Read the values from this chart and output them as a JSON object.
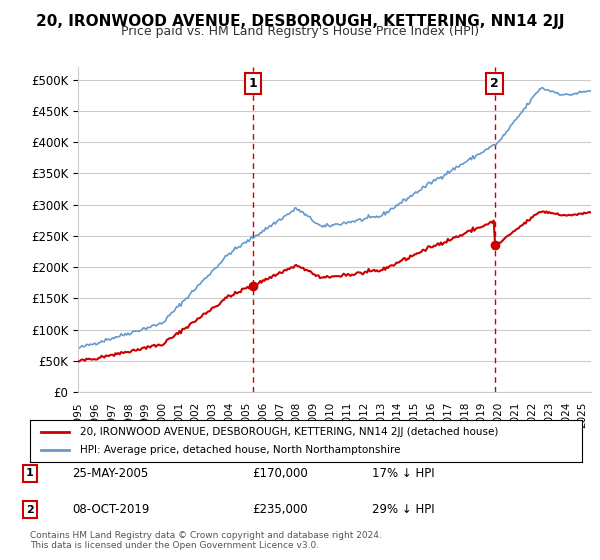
{
  "title": "20, IRONWOOD AVENUE, DESBOROUGH, KETTERING, NN14 2JJ",
  "subtitle": "Price paid vs. HM Land Registry's House Price Index (HPI)",
  "ylabel_ticks": [
    "£0",
    "£50K",
    "£100K",
    "£150K",
    "£200K",
    "£250K",
    "£300K",
    "£350K",
    "£400K",
    "£450K",
    "£500K"
  ],
  "ytick_values": [
    0,
    50000,
    100000,
    150000,
    200000,
    250000,
    300000,
    350000,
    400000,
    450000,
    500000
  ],
  "ylim": [
    0,
    520000
  ],
  "xlim_start": 1995.0,
  "xlim_end": 2025.5,
  "sale1": {
    "date_x": 2005.4,
    "price": 170000,
    "label": "1",
    "date_str": "25-MAY-2005",
    "pct": "17% ↓ HPI"
  },
  "sale2": {
    "date_x": 2019.77,
    "price": 235000,
    "label": "2",
    "date_str": "08-OCT-2019",
    "pct": "29% ↓ HPI"
  },
  "legend_house": "20, IRONWOOD AVENUE, DESBOROUGH, KETTERING, NN14 2JJ (detached house)",
  "legend_hpi": "HPI: Average price, detached house, North Northamptonshire",
  "footnote": "Contains HM Land Registry data © Crown copyright and database right 2024.\nThis data is licensed under the Open Government Licence v3.0.",
  "house_color": "#cc0000",
  "hpi_color": "#6699cc",
  "vline_color": "#cc0000",
  "background_color": "#ffffff",
  "plot_bg_color": "#ffffff",
  "grid_color": "#cccccc"
}
